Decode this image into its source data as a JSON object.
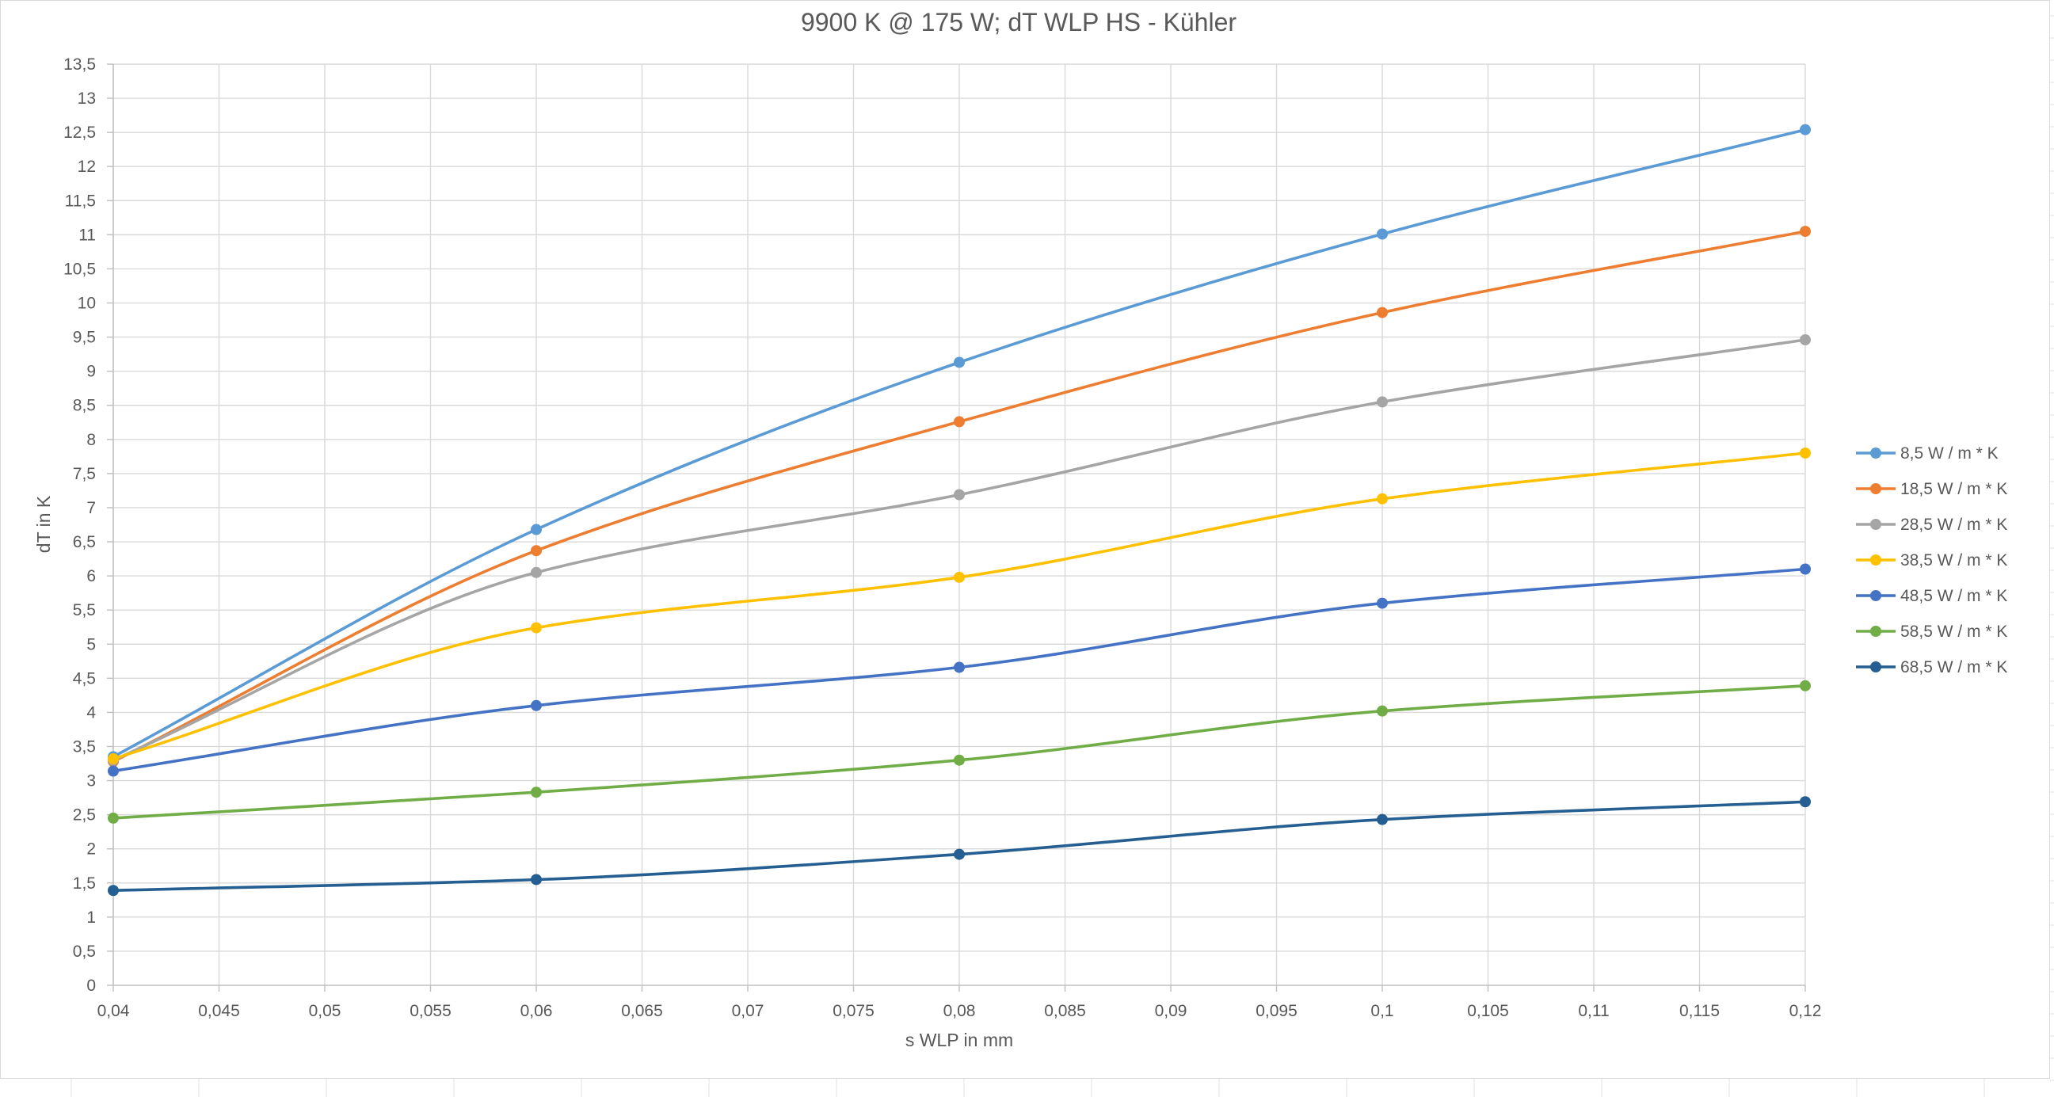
{
  "chart_data": {
    "type": "line",
    "title": "9900 K @ 175 W; dT WLP HS - Kühler",
    "xlabel": "s WLP in mm",
    "ylabel": "dT in K",
    "xlim": [
      0.04,
      0.12
    ],
    "ylim": [
      0,
      13.5
    ],
    "x_ticks": [
      "0,04",
      "0,045",
      "0,05",
      "0,055",
      "0,06",
      "0,065",
      "0,07",
      "0,075",
      "0,08",
      "0,085",
      "0,09",
      "0,095",
      "0,1",
      "0,105",
      "0,11",
      "0,115",
      "0,12"
    ],
    "y_ticks": [
      "0",
      "0,5",
      "1",
      "1,5",
      "2",
      "2,5",
      "3",
      "3,5",
      "4",
      "4,5",
      "5",
      "5,5",
      "6",
      "6,5",
      "7",
      "7,5",
      "8",
      "8,5",
      "9",
      "9,5",
      "10",
      "10,5",
      "11",
      "11,5",
      "12",
      "12,5",
      "13",
      "13,5"
    ],
    "grid": true,
    "smooth": true,
    "legend_position": "right",
    "x": [
      0.04,
      0.06,
      0.08,
      0.1,
      0.12
    ],
    "series": [
      {
        "name": "8,5 W / m * K",
        "color": "#5B9BD5",
        "values": [
          3.35,
          6.68,
          9.13,
          11.01,
          12.54
        ]
      },
      {
        "name": "18,5 W / m * K",
        "color": "#ED7D31",
        "values": [
          3.28,
          6.37,
          8.26,
          9.86,
          11.05
        ]
      },
      {
        "name": "28,5 W / m * K",
        "color": "#A5A5A5",
        "values": [
          3.3,
          6.05,
          7.19,
          8.55,
          9.46
        ]
      },
      {
        "name": "38,5 W / m * K",
        "color": "#FFC000",
        "values": [
          3.32,
          5.24,
          5.98,
          7.13,
          7.8
        ]
      },
      {
        "name": "48,5 W / m * K",
        "color": "#4472C4",
        "values": [
          3.14,
          4.1,
          4.66,
          5.6,
          6.1
        ]
      },
      {
        "name": "58,5 W / m * K",
        "color": "#70AD47",
        "values": [
          2.45,
          2.83,
          3.3,
          4.02,
          4.39
        ]
      },
      {
        "name": "68,5 W / m * K",
        "color": "#255E91",
        "values": [
          1.39,
          1.55,
          1.92,
          2.43,
          2.69
        ]
      }
    ]
  }
}
